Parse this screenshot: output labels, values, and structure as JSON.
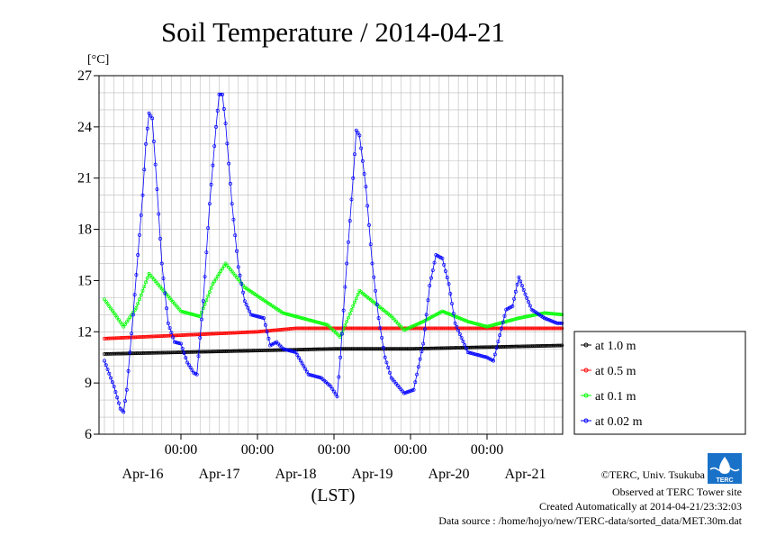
{
  "chart_data": {
    "type": "line",
    "title": "Soil Temperature / 2014-04-21",
    "ylabel": "[°C]",
    "xlabel": "(LST)",
    "ylim": [
      6,
      27
    ],
    "yticks": [
      6,
      9,
      12,
      15,
      18,
      21,
      24,
      27
    ],
    "xlim_hours": [
      0,
      144
    ],
    "x_major_labels": [
      "00:00",
      "00:00",
      "00:00",
      "00:00",
      "00:00"
    ],
    "x_date_labels": [
      "Apr-16",
      "Apr-17",
      "Apr-18",
      "Apr-19",
      "Apr-20",
      "Apr-21"
    ],
    "grid": true,
    "legend_position": "right",
    "series": [
      {
        "name": "at 1.0 m",
        "color": "#000000",
        "points": [
          [
            0,
            10.7
          ],
          [
            24,
            10.8
          ],
          [
            48,
            10.9
          ],
          [
            72,
            11.0
          ],
          [
            96,
            11.0
          ],
          [
            120,
            11.1
          ],
          [
            144,
            11.2
          ]
        ]
      },
      {
        "name": "at 0.5 m",
        "color": "#ff0000",
        "points": [
          [
            0,
            11.6
          ],
          [
            24,
            11.8
          ],
          [
            48,
            12.0
          ],
          [
            60,
            12.2
          ],
          [
            72,
            12.2
          ],
          [
            96,
            12.2
          ],
          [
            120,
            12.2
          ],
          [
            144,
            12.2
          ]
        ]
      },
      {
        "name": "at 0.1 m",
        "color": "#00ff00",
        "points": [
          [
            0,
            13.9
          ],
          [
            6,
            12.3
          ],
          [
            10,
            13.4
          ],
          [
            14,
            15.4
          ],
          [
            24,
            13.2
          ],
          [
            30,
            12.9
          ],
          [
            34,
            14.8
          ],
          [
            38,
            16.0
          ],
          [
            44,
            14.6
          ],
          [
            56,
            13.1
          ],
          [
            70,
            12.4
          ],
          [
            74,
            11.7
          ],
          [
            80,
            14.4
          ],
          [
            90,
            12.9
          ],
          [
            94,
            12.1
          ],
          [
            100,
            12.6
          ],
          [
            106,
            13.2
          ],
          [
            114,
            12.6
          ],
          [
            120,
            12.3
          ],
          [
            130,
            12.8
          ],
          [
            138,
            13.1
          ],
          [
            144,
            13.0
          ]
        ]
      },
      {
        "name": "at 0.02 m",
        "color": "#0000ff",
        "points": [
          [
            0,
            10.3
          ],
          [
            3,
            8.8
          ],
          [
            5,
            7.5
          ],
          [
            6,
            7.3
          ],
          [
            7,
            8.6
          ],
          [
            9,
            13.0
          ],
          [
            12,
            20.0
          ],
          [
            13,
            23.0
          ],
          [
            14,
            24.8
          ],
          [
            15,
            24.5
          ],
          [
            16,
            21.8
          ],
          [
            18,
            16.0
          ],
          [
            20,
            12.5
          ],
          [
            22,
            11.4
          ],
          [
            24,
            11.3
          ],
          [
            26,
            10.2
          ],
          [
            28,
            9.6
          ],
          [
            29,
            9.5
          ],
          [
            31,
            13.8
          ],
          [
            33,
            19.5
          ],
          [
            35,
            24.0
          ],
          [
            36,
            25.9
          ],
          [
            37,
            25.9
          ],
          [
            38,
            24.2
          ],
          [
            40,
            19.5
          ],
          [
            42,
            15.8
          ],
          [
            44,
            13.8
          ],
          [
            46,
            13.0
          ],
          [
            50,
            12.8
          ],
          [
            52,
            11.2
          ],
          [
            54,
            11.4
          ],
          [
            56,
            11.0
          ],
          [
            60,
            10.8
          ],
          [
            64,
            9.5
          ],
          [
            68,
            9.3
          ],
          [
            71,
            8.8
          ],
          [
            73,
            8.2
          ],
          [
            74,
            10.5
          ],
          [
            76,
            16.0
          ],
          [
            78,
            21.0
          ],
          [
            79,
            23.8
          ],
          [
            80,
            23.5
          ],
          [
            82,
            20.5
          ],
          [
            84,
            16.0
          ],
          [
            86,
            12.8
          ],
          [
            88,
            10.5
          ],
          [
            90,
            9.3
          ],
          [
            94,
            8.4
          ],
          [
            97,
            8.6
          ],
          [
            100,
            11.3
          ],
          [
            102,
            14.7
          ],
          [
            104,
            16.5
          ],
          [
            106,
            16.3
          ],
          [
            108,
            14.8
          ],
          [
            110,
            12.5
          ],
          [
            114,
            10.8
          ],
          [
            120,
            10.5
          ],
          [
            122,
            10.3
          ],
          [
            124,
            11.8
          ],
          [
            126,
            13.3
          ],
          [
            128,
            13.5
          ],
          [
            130,
            15.2
          ],
          [
            132,
            14.2
          ],
          [
            134,
            13.3
          ],
          [
            138,
            12.8
          ],
          [
            142,
            12.5
          ],
          [
            144,
            12.5
          ]
        ]
      }
    ]
  },
  "credits": {
    "logo_text": "TERC",
    "copyright": "©TERC, Univ. Tsukuba",
    "observed": "Observed at TERC Tower site",
    "created": "Created Automatically at 2014-04-21/23:32:03",
    "source": "Data source : /home/hojyo/new/TERC-data/sorted_data/MET.30m.dat"
  }
}
